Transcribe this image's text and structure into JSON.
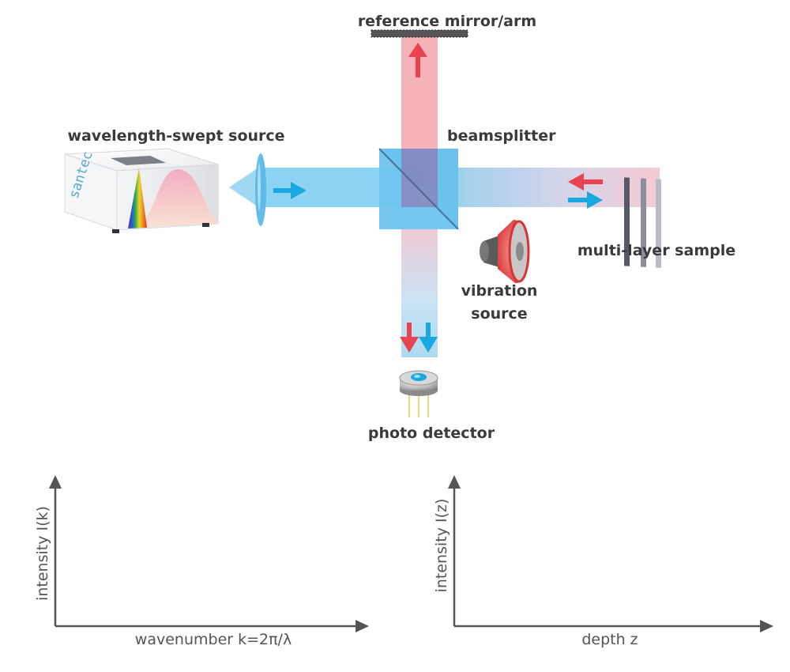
{
  "labels": {
    "reference": "reference mirror/arm",
    "source": "wavelength-swept source",
    "beamsplitter": "beamsplitter",
    "sample": "multi-layer sample",
    "vibration_line1": "vibration",
    "vibration_line2": "source",
    "detector": "photo detector"
  },
  "source_brand": "santec",
  "plots": {
    "left": {
      "ylabel": "intensity I(k)",
      "xlabel": "wavenumber k=2π/λ"
    },
    "right": {
      "ylabel": "intensity I(z)",
      "xlabel": "depth z"
    }
  },
  "colors": {
    "blue_beam": "#5cc0ee",
    "red_beam": "#f08a93",
    "blue_arrow": "#1aa8e0",
    "red_arrow": "#e8434f",
    "speaker": "#e84a4a",
    "text": "#3a3a3a",
    "axis": "#555555"
  },
  "icons": {
    "speaker": "speaker-icon",
    "detector": "photodetector-icon",
    "lens": "lens-icon",
    "mirror": "mirror-icon"
  }
}
